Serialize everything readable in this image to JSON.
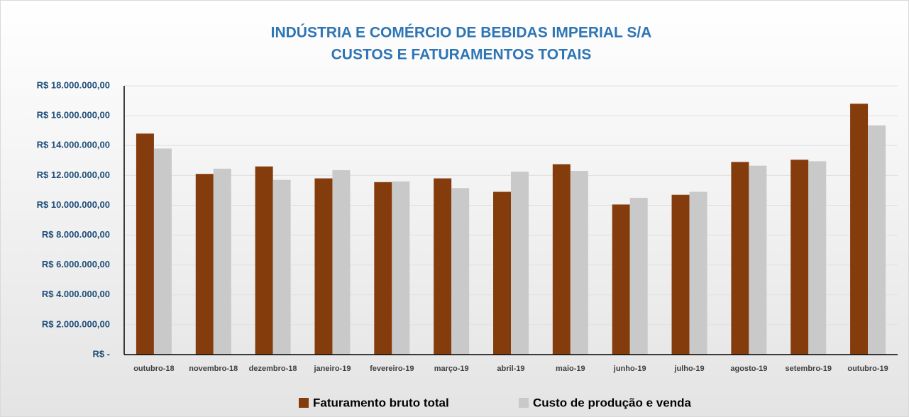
{
  "chart_data": {
    "type": "bar",
    "title": "INDÚSTRIA E COMÉRCIO DE BEBIDAS IMPERIAL S/A",
    "subtitle": "CUSTOS E FATURAMENTOS TOTAIS",
    "categories": [
      "outubro-18",
      "novembro-18",
      "dezembro-18",
      "janeiro-19",
      "fevereiro-19",
      "março-19",
      "abril-19",
      "maio-19",
      "junho-19",
      "julho-19",
      "agosto-19",
      "setembro-19",
      "outubro-19"
    ],
    "series": [
      {
        "name": "Faturamento bruto total",
        "color": "#843c0c",
        "values": [
          14800000,
          12100000,
          12600000,
          11800000,
          11550000,
          11800000,
          10900000,
          12750000,
          10050000,
          10700000,
          12900000,
          13050000,
          16800000
        ]
      },
      {
        "name": "Custo de produção e venda",
        "color": "#c9c9c9",
        "values": [
          13800000,
          12450000,
          11700000,
          12350000,
          11600000,
          11150000,
          12250000,
          12300000,
          10500000,
          10900000,
          12650000,
          12950000,
          15350000
        ]
      }
    ],
    "ylim": [
      0,
      18000000
    ],
    "yticks": [
      {
        "value": 0,
        "label": "R$ -"
      },
      {
        "value": 2000000,
        "label": "R$ 2.000.000,00"
      },
      {
        "value": 4000000,
        "label": "R$ 4.000.000,00"
      },
      {
        "value": 6000000,
        "label": "R$ 6.000.000,00"
      },
      {
        "value": 8000000,
        "label": "R$ 8.000.000,00"
      },
      {
        "value": 10000000,
        "label": "R$ 10.000.000,00"
      },
      {
        "value": 12000000,
        "label": "R$ 12.000.000,00"
      },
      {
        "value": 14000000,
        "label": "R$ 14.000.000,00"
      },
      {
        "value": 16000000,
        "label": "R$ 16.000.000,00"
      },
      {
        "value": 18000000,
        "label": "R$ 18.000.000,00"
      }
    ],
    "grid": true,
    "legend": "bottom"
  }
}
